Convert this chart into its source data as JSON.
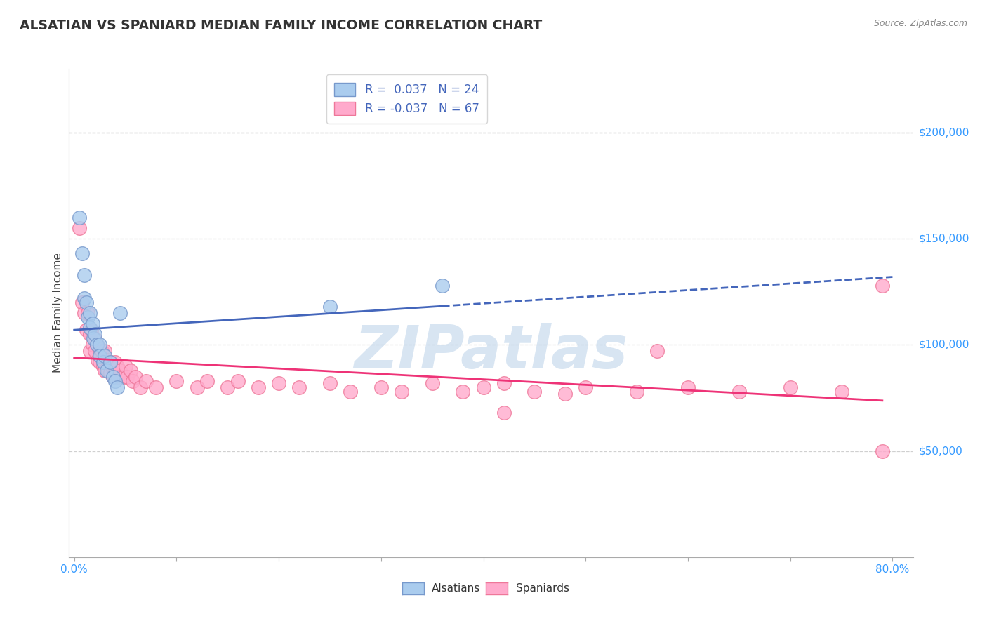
{
  "title": "ALSATIAN VS SPANIARD MEDIAN FAMILY INCOME CORRELATION CHART",
  "source_text": "Source: ZipAtlas.com",
  "ylabel": "Median Family Income",
  "xlim": [
    -0.005,
    0.82
  ],
  "ylim": [
    0,
    230000
  ],
  "ytick_positions": [
    50000,
    100000,
    150000,
    200000
  ],
  "ytick_labels": [
    "$50,000",
    "$100,000",
    "$150,000",
    "$200,000"
  ],
  "xtick_positions": [
    0.0,
    0.1,
    0.2,
    0.3,
    0.4,
    0.5,
    0.6,
    0.7,
    0.8
  ],
  "xtick_labels": [
    "0.0%",
    "",
    "",
    "",
    "",
    "",
    "",
    "",
    "80.0%"
  ],
  "background_color": "#ffffff",
  "grid_color": "#d0d0d0",
  "watermark": "ZIPatlas",
  "watermark_color": "#b8d0e8",
  "legend_r1": "R =  0.037",
  "legend_n1": "N = 24",
  "legend_r2": "R = -0.037",
  "legend_n2": "N = 67",
  "alsatian_color": "#aaccee",
  "alsatian_edge": "#7799cc",
  "spaniard_color": "#ffaacc",
  "spaniard_edge": "#ee7799",
  "trend_blue": "#4466bb",
  "trend_pink": "#ee3377",
  "label_color_blue": "#3399ff",
  "label_color_pink": "#ee3377",
  "alsatian_x": [
    0.005,
    0.008,
    0.01,
    0.01,
    0.012,
    0.013,
    0.015,
    0.015,
    0.018,
    0.019,
    0.02,
    0.022,
    0.025,
    0.025,
    0.028,
    0.03,
    0.032,
    0.035,
    0.038,
    0.04,
    0.042,
    0.045,
    0.25,
    0.36
  ],
  "alsatian_y": [
    160000,
    143000,
    133000,
    122000,
    120000,
    113000,
    115000,
    108000,
    110000,
    103000,
    105000,
    100000,
    100000,
    95000,
    92000,
    95000,
    88000,
    92000,
    85000,
    83000,
    80000,
    115000,
    118000,
    128000
  ],
  "spaniard_x": [
    0.005,
    0.008,
    0.01,
    0.012,
    0.013,
    0.015,
    0.015,
    0.017,
    0.018,
    0.02,
    0.02,
    0.022,
    0.023,
    0.025,
    0.025,
    0.027,
    0.028,
    0.03,
    0.03,
    0.032,
    0.033,
    0.035,
    0.035,
    0.037,
    0.038,
    0.04,
    0.04,
    0.042,
    0.043,
    0.045,
    0.048,
    0.05,
    0.052,
    0.055,
    0.057,
    0.06,
    0.065,
    0.07,
    0.08,
    0.1,
    0.12,
    0.13,
    0.15,
    0.16,
    0.18,
    0.2,
    0.22,
    0.25,
    0.27,
    0.3,
    0.32,
    0.35,
    0.38,
    0.4,
    0.42,
    0.45,
    0.48,
    0.5,
    0.55,
    0.6,
    0.65,
    0.7,
    0.75,
    0.79,
    0.79,
    0.57,
    0.42
  ],
  "spaniard_y": [
    155000,
    120000,
    115000,
    107000,
    115000,
    105000,
    97000,
    107000,
    100000,
    103000,
    97000,
    100000,
    93000,
    98000,
    92000,
    97000,
    90000,
    97000,
    88000,
    93000,
    88000,
    92000,
    87000,
    90000,
    85000,
    92000,
    87000,
    90000,
    85000,
    88000,
    85000,
    90000,
    85000,
    88000,
    83000,
    85000,
    80000,
    83000,
    80000,
    83000,
    80000,
    83000,
    80000,
    83000,
    80000,
    82000,
    80000,
    82000,
    78000,
    80000,
    78000,
    82000,
    78000,
    80000,
    82000,
    78000,
    77000,
    80000,
    78000,
    80000,
    78000,
    80000,
    78000,
    128000,
    50000,
    97000,
    68000
  ]
}
